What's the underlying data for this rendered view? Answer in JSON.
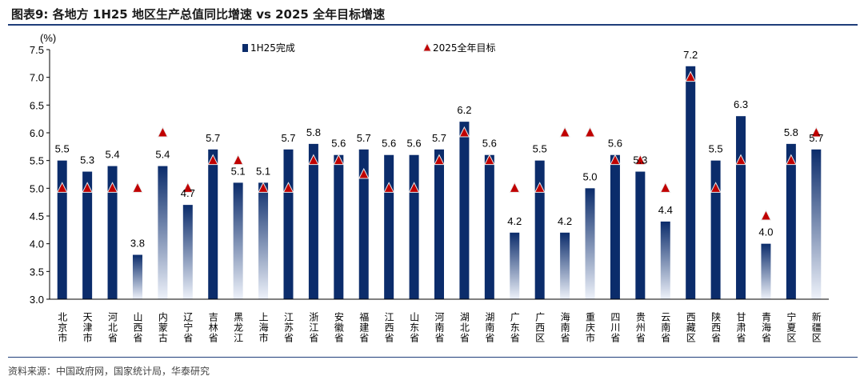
{
  "header": {
    "title": "图表9:  各地方 1H25 地区生产总值同比增速  vs 2025 全年目标增速"
  },
  "source": "资料来源：中国政府网，国家统计局，华泰研究",
  "colors": {
    "bar_solid": "#0B2C6B",
    "bar_gradient_top": "#0B2C6B",
    "bar_gradient_bottom": "#EEF2FA",
    "marker_fill": "#C00000",
    "marker_stroke": "#EAEAEA",
    "axis": "#000000"
  },
  "chart_data": {
    "type": "bar",
    "unit_label": "(%)",
    "ylim": [
      3.0,
      7.5
    ],
    "yticks": [
      "3.0",
      "3.5",
      "4.0",
      "4.5",
      "5.0",
      "5.5",
      "6.0",
      "6.5",
      "7.0",
      "7.5"
    ],
    "categories": [
      "北京市",
      "天津市",
      "河北省",
      "山西省",
      "内蒙古",
      "辽宁省",
      "吉林省",
      "黑龙江",
      "上海市",
      "江苏省",
      "浙江省",
      "安徽省",
      "福建省",
      "江西省",
      "山东省",
      "河南省",
      "湖北省",
      "湖南省",
      "广东省",
      "广西区",
      "海南省",
      "重庆市",
      "四川省",
      "贵州省",
      "云南省",
      "西藏区",
      "陕西省",
      "甘肃省",
      "青海省",
      "宁夏区",
      "新疆区"
    ],
    "series": [
      {
        "name": "1H25完成",
        "type": "bar",
        "values": [
          5.5,
          5.3,
          5.4,
          3.8,
          5.4,
          4.7,
          5.7,
          5.1,
          5.1,
          5.7,
          5.8,
          5.6,
          5.7,
          5.6,
          5.6,
          5.7,
          6.2,
          5.6,
          4.2,
          5.5,
          4.2,
          5.0,
          5.6,
          5.3,
          4.4,
          7.2,
          5.5,
          6.3,
          4.0,
          5.8,
          5.7
        ],
        "labels": [
          "5.5",
          "5.3",
          "5.4",
          "3.8",
          "5.4",
          "4.7",
          "5.7",
          "5.1",
          "5.1",
          "5.7",
          "5.8",
          "5.6",
          "5.7",
          "5.6",
          "5.6",
          "5.7",
          "6.2",
          "5.6",
          "4.2",
          "5.5",
          "4.2",
          "5.0",
          "5.6",
          "5.3",
          "4.4",
          "7.2",
          "5.5",
          "6.3",
          "4.0",
          "5.8",
          "5.7"
        ],
        "style": [
          "solid",
          "solid",
          "solid",
          "gradient",
          "gradient",
          "gradient",
          "solid",
          "gradient",
          "gradient",
          "solid",
          "solid",
          "solid",
          "solid",
          "solid",
          "solid",
          "solid",
          "solid",
          "solid",
          "gradient",
          "solid",
          "gradient",
          "gradient",
          "solid",
          "solid",
          "gradient",
          "solid",
          "solid",
          "solid",
          "gradient",
          "solid",
          "gradient"
        ]
      },
      {
        "name": "2025全年目标",
        "type": "marker",
        "values": [
          5.0,
          5.0,
          5.0,
          5.0,
          6.0,
          5.0,
          5.5,
          5.5,
          5.0,
          5.0,
          5.5,
          5.5,
          5.25,
          5.0,
          5.0,
          5.5,
          6.0,
          5.5,
          5.0,
          5.0,
          6.0,
          6.0,
          5.5,
          5.5,
          5.0,
          7.0,
          5.0,
          5.5,
          4.5,
          5.5,
          6.0
        ]
      }
    ],
    "legend_position": "top",
    "grid": false
  }
}
